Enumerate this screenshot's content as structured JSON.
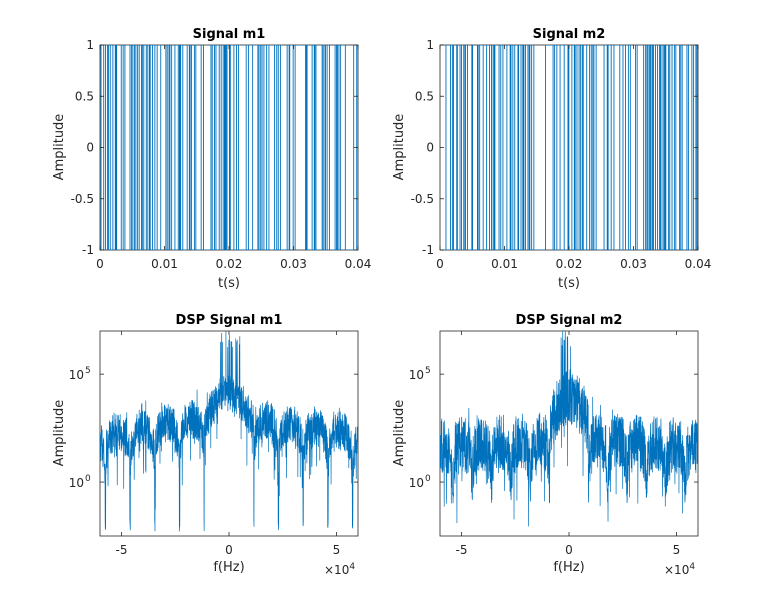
{
  "figure": {
    "background": "#ffffff",
    "line_color": "#0072BD",
    "axis_color": "#262626"
  },
  "chart_data": [
    {
      "id": "sig1",
      "type": "line",
      "title": "Signal m1",
      "xlabel": "t(s)",
      "ylabel": "Amplitude",
      "xlim": [
        0,
        0.04
      ],
      "ylim": [
        -1,
        1
      ],
      "xscale": "linear",
      "yscale": "linear",
      "grid": false,
      "xticks": [
        0,
        0.01,
        0.02,
        0.03,
        0.04
      ],
      "xtick_labels": [
        "0",
        "0.01",
        "0.02",
        "0.03",
        "0.04"
      ],
      "yticks": [
        -1,
        -0.5,
        0,
        0.5,
        1
      ],
      "ytick_labels": [
        "-1",
        "-0.5",
        "0",
        "0.5",
        "1"
      ],
      "series_description": "random binary NRZ square wave switching between -1 and 1",
      "levels": [
        -1,
        1
      ]
    },
    {
      "id": "sig2",
      "type": "line",
      "title": "Signal m2",
      "xlabel": "t(s)",
      "ylabel": "Amplitude",
      "xlim": [
        0,
        0.04
      ],
      "ylim": [
        -1,
        1
      ],
      "xscale": "linear",
      "yscale": "linear",
      "grid": false,
      "xticks": [
        0,
        0.01,
        0.02,
        0.03,
        0.04
      ],
      "xtick_labels": [
        "0",
        "0.01",
        "0.02",
        "0.03",
        "0.04"
      ],
      "yticks": [
        -1,
        -0.5,
        0,
        0.5,
        1
      ],
      "ytick_labels": [
        "-1",
        "-0.5",
        "0",
        "0.5",
        "1"
      ],
      "series_description": "random binary NRZ square wave switching between -1 and 1",
      "levels": [
        -1,
        1
      ]
    },
    {
      "id": "dsp1",
      "type": "line",
      "title": "DSP Signal m1",
      "xlabel": "f(Hz)",
      "ylabel": "Amplitude",
      "x_exponent_label": "×10^4",
      "x_exponent_base": "×10",
      "x_exponent_power": "4",
      "xlim": [
        -60000,
        60000
      ],
      "ylim_log10": [
        -2.5,
        7
      ],
      "xscale": "linear",
      "yscale": "log",
      "grid": false,
      "xticks": [
        -50000,
        0,
        50000
      ],
      "xtick_labels": [
        "-5",
        "0",
        "5"
      ],
      "yticks_log10": [
        0,
        5
      ],
      "ytick_base": "10",
      "ytick_exponents": [
        "0",
        "5"
      ],
      "series_description": "power spectral density with sinc-squared lobes, peak near f=0",
      "peak_log10": 6.2,
      "main_lobe_log10": 4.2,
      "side_lobe_base_log10": 3.0,
      "side_lobe_decay_per_lobe": 0.18,
      "null_spacing_hz": 11500,
      "null_depth_log10": -2.3,
      "noise_spread_log10": 0.9
    },
    {
      "id": "dsp2",
      "type": "line",
      "title": "DSP Signal m2",
      "xlabel": "f(Hz)",
      "ylabel": "Amplitude",
      "x_exponent_label": "×10^4",
      "x_exponent_base": "×10",
      "x_exponent_power": "4",
      "xlim": [
        -60000,
        60000
      ],
      "ylim_log10": [
        -2.5,
        7
      ],
      "xscale": "linear",
      "yscale": "log",
      "grid": false,
      "xticks": [
        -50000,
        0,
        50000
      ],
      "xtick_labels": [
        "-5",
        "0",
        "5"
      ],
      "yticks_log10": [
        0,
        5
      ],
      "ytick_base": "10",
      "ytick_exponents": [
        "0",
        "5"
      ],
      "series_description": "power spectral density with sinc-squared lobes, peak near f=0",
      "peak_log10": 6.2,
      "main_lobe_log10": 4.1,
      "side_lobe_base_log10": 2.1,
      "side_lobe_decay_per_lobe": 0.05,
      "null_spacing_hz": 9000,
      "null_depth_log10": -1.0,
      "noise_spread_log10": 1.3
    }
  ]
}
